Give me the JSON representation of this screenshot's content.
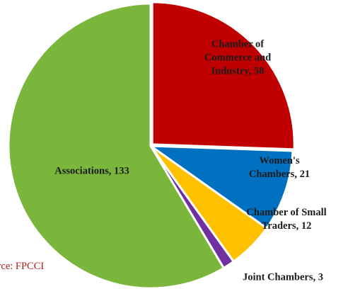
{
  "chart_data": {
    "type": "pie",
    "categories": [
      "Chamber of Commerce and Industry",
      "Women's Chambers",
      "Chamber of Small Traders",
      "Joint Chambers",
      "Associations"
    ],
    "values": [
      58,
      21,
      12,
      3,
      133
    ],
    "colors": [
      "#c00000",
      "#0070c0",
      "#ffc000",
      "#7030a0",
      "#7ab53c"
    ],
    "source": "Source: FPCCI"
  }
}
